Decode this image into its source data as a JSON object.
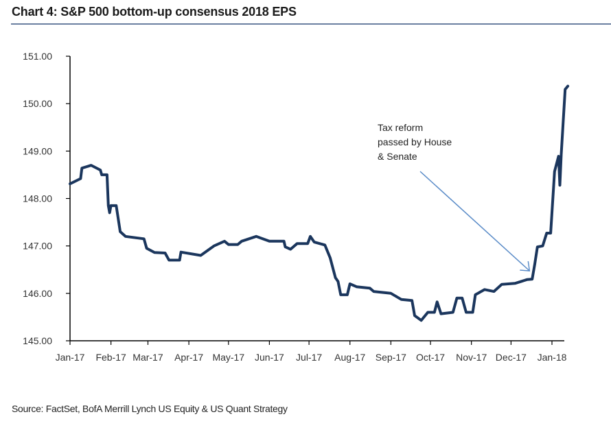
{
  "title": "Chart 4: S&P 500 bottom-up consensus 2018 EPS",
  "source": "Source: FactSet, BofA Merrill Lynch US Equity & US Quant Strategy",
  "chart_data": {
    "type": "line",
    "title": "Chart 4: S&P 500 bottom-up consensus 2018 EPS",
    "xlabel": "",
    "ylabel": "",
    "ylim": [
      145,
      151
    ],
    "yticks": [
      "145.00",
      "146.00",
      "147.00",
      "148.00",
      "149.00",
      "150.00",
      "151.00"
    ],
    "xticks": [
      {
        "label": "Jan-17",
        "date": "2017-01-01"
      },
      {
        "label": "Feb-17",
        "date": "2017-02-01"
      },
      {
        "label": "Mar-17",
        "date": "2017-03-01"
      },
      {
        "label": "Apr-17",
        "date": "2017-04-01"
      },
      {
        "label": "May-17",
        "date": "2017-05-01"
      },
      {
        "label": "Jun-17",
        "date": "2017-06-01"
      },
      {
        "label": "Jul-17",
        "date": "2017-07-01"
      },
      {
        "label": "Aug-17",
        "date": "2017-08-01"
      },
      {
        "label": "Sep-17",
        "date": "2017-09-01"
      },
      {
        "label": "Oct-17",
        "date": "2017-10-01"
      },
      {
        "label": "Nov-17",
        "date": "2017-11-01"
      },
      {
        "label": "Dec-17",
        "date": "2017-12-01"
      },
      {
        "label": "Jan-18",
        "date": "2018-01-01"
      }
    ],
    "xlim": [
      "2017-01-01",
      "2018-01-18"
    ],
    "grid": false,
    "line_color": "#1b365d",
    "annotation_color": "#5b8cc8",
    "annotation": {
      "lines": [
        "Tax reform",
        "passed by House",
        "& Senate"
      ],
      "points_to": "2017-12-15"
    },
    "series": [
      {
        "points": [
          [
            "2017-01-01",
            148.31
          ],
          [
            "2017-01-09",
            148.42
          ],
          [
            "2017-01-10",
            148.64
          ],
          [
            "2017-01-17",
            148.7
          ],
          [
            "2017-01-24",
            148.6
          ],
          [
            "2017-01-25",
            148.5
          ],
          [
            "2017-01-29",
            148.5
          ],
          [
            "2017-01-30",
            147.85
          ],
          [
            "2017-01-31",
            147.7
          ],
          [
            "2017-02-01",
            147.85
          ],
          [
            "2017-02-05",
            147.85
          ],
          [
            "2017-02-08",
            147.3
          ],
          [
            "2017-02-12",
            147.2
          ],
          [
            "2017-02-26",
            147.15
          ],
          [
            "2017-02-28",
            146.95
          ],
          [
            "2017-03-06",
            146.86
          ],
          [
            "2017-03-14",
            146.85
          ],
          [
            "2017-03-17",
            146.7
          ],
          [
            "2017-03-25",
            146.7
          ],
          [
            "2017-03-26",
            146.87
          ],
          [
            "2017-04-10",
            146.8
          ],
          [
            "2017-04-20",
            147.0
          ],
          [
            "2017-04-28",
            147.1
          ],
          [
            "2017-05-01",
            147.03
          ],
          [
            "2017-05-08",
            147.03
          ],
          [
            "2017-05-11",
            147.1
          ],
          [
            "2017-05-22",
            147.2
          ],
          [
            "2017-06-01",
            147.1
          ],
          [
            "2017-06-12",
            147.1
          ],
          [
            "2017-06-13",
            146.98
          ],
          [
            "2017-06-17",
            146.93
          ],
          [
            "2017-06-22",
            147.05
          ],
          [
            "2017-06-30",
            147.05
          ],
          [
            "2017-07-02",
            147.2
          ],
          [
            "2017-07-05",
            147.08
          ],
          [
            "2017-07-13",
            147.02
          ],
          [
            "2017-07-17",
            146.75
          ],
          [
            "2017-07-21",
            146.33
          ],
          [
            "2017-07-23",
            146.25
          ],
          [
            "2017-07-25",
            145.97
          ],
          [
            "2017-07-30",
            145.97
          ],
          [
            "2017-08-01",
            146.2
          ],
          [
            "2017-08-06",
            146.14
          ],
          [
            "2017-08-16",
            146.11
          ],
          [
            "2017-08-19",
            146.04
          ],
          [
            "2017-09-01",
            146.0
          ],
          [
            "2017-09-09",
            145.87
          ],
          [
            "2017-09-17",
            145.85
          ],
          [
            "2017-09-19",
            145.53
          ],
          [
            "2017-09-24",
            145.43
          ],
          [
            "2017-09-29",
            145.6
          ],
          [
            "2017-10-04",
            145.6
          ],
          [
            "2017-10-06",
            145.82
          ],
          [
            "2017-10-09",
            145.57
          ],
          [
            "2017-10-18",
            145.6
          ],
          [
            "2017-10-21",
            145.9
          ],
          [
            "2017-10-25",
            145.9
          ],
          [
            "2017-10-28",
            145.6
          ],
          [
            "2017-11-02",
            145.6
          ],
          [
            "2017-11-04",
            145.97
          ],
          [
            "2017-11-11",
            146.08
          ],
          [
            "2017-11-18",
            146.04
          ],
          [
            "2017-11-24",
            146.19
          ],
          [
            "2017-12-04",
            146.21
          ],
          [
            "2017-12-13",
            146.29
          ],
          [
            "2017-12-17",
            146.3
          ],
          [
            "2017-12-19",
            146.62
          ],
          [
            "2017-12-21",
            146.98
          ],
          [
            "2017-12-25",
            147.0
          ],
          [
            "2017-12-28",
            147.27
          ],
          [
            "2017-12-31",
            147.27
          ],
          [
            "2018-01-03",
            148.57
          ],
          [
            "2018-01-06",
            148.89
          ],
          [
            "2018-01-07",
            148.28
          ],
          [
            "2018-01-08",
            148.93
          ],
          [
            "2018-01-11",
            150.3
          ],
          [
            "2018-01-13",
            150.37
          ]
        ]
      }
    ]
  }
}
